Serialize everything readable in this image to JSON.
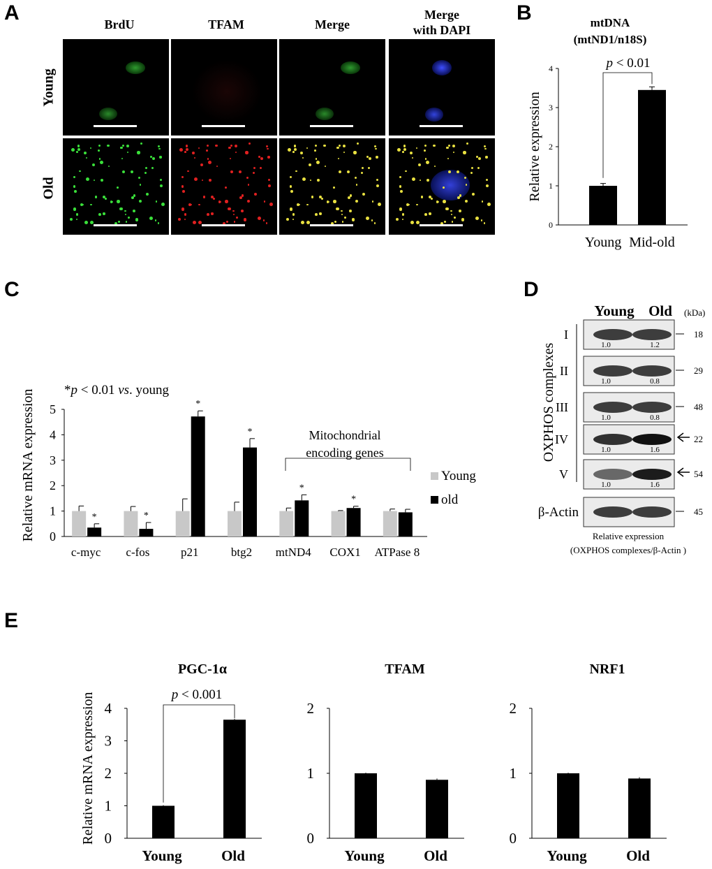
{
  "panels": {
    "a": {
      "letter": "A",
      "columns": [
        "BrdU",
        "TFAM",
        "Merge",
        "Merge\nwith DAPI"
      ],
      "rows": [
        "Young",
        "Old"
      ]
    },
    "b": {
      "letter": "B"
    },
    "c": {
      "letter": "C"
    },
    "d": {
      "letter": "D",
      "lanes": [
        "Young",
        "Old"
      ],
      "kda_label": "(kDa)",
      "group_label": "OXPHOS complexes",
      "blots": [
        {
          "label": "I",
          "values": [
            "1.0",
            "1.2"
          ],
          "kda": "18",
          "arrow": false
        },
        {
          "label": "II",
          "values": [
            "1.0",
            "0.8"
          ],
          "kda": "29",
          "arrow": false
        },
        {
          "label": "III",
          "values": [
            "1.0",
            "0.8"
          ],
          "kda": "48",
          "arrow": false
        },
        {
          "label": "IV",
          "values": [
            "1.0",
            "1.6"
          ],
          "kda": "22",
          "arrow": true
        },
        {
          "label": "V",
          "values": [
            "1.0",
            "1.6"
          ],
          "kda": "54",
          "arrow": true
        },
        {
          "label": "β-Actin",
          "values": [
            "",
            ""
          ],
          "kda": "45",
          "arrow": false
        }
      ],
      "caption_line1": "Relative expression",
      "caption_line2": "(OXPHOS complexes/β-Actin )"
    },
    "e": {
      "letter": "E"
    }
  },
  "chart_data": [
    {
      "id": "B",
      "type": "bar",
      "title_line1": "mtDNA",
      "title_line2": "(mtND1/n18S)",
      "categories": [
        "Young",
        "Mid-old"
      ],
      "values": [
        1.0,
        3.45
      ],
      "errors": [
        0.06,
        0.08
      ],
      "ylabel": "Relative expression",
      "ylim": [
        0,
        4
      ],
      "yticks": [
        0,
        1,
        2,
        3,
        4
      ],
      "annotation": {
        "prefix": "p",
        "text": " < 0.01"
      },
      "bar_color": "#000000"
    },
    {
      "id": "C",
      "type": "bar",
      "categories": [
        "c-myc",
        "c-fos",
        "p21",
        "btg2",
        "mtND4",
        "COX1",
        "ATPase 8"
      ],
      "series": [
        {
          "name": "Young",
          "color": "#c8c8c8",
          "values": [
            1.0,
            1.0,
            1.0,
            1.0,
            1.0,
            1.0,
            1.0
          ],
          "errors": [
            0.2,
            0.18,
            0.48,
            0.35,
            0.12,
            0.02,
            0.08
          ]
        },
        {
          "name": "old",
          "color": "#000000",
          "values": [
            0.35,
            0.3,
            4.72,
            3.5,
            1.42,
            1.12,
            0.95
          ],
          "errors": [
            0.15,
            0.25,
            0.22,
            0.35,
            0.22,
            0.07,
            0.12
          ],
          "star": [
            true,
            true,
            true,
            true,
            true,
            true,
            false
          ]
        }
      ],
      "ylabel": "Relative mRNA expression",
      "ylim": [
        0,
        5
      ],
      "yticks": [
        0,
        1,
        2,
        3,
        4,
        5
      ],
      "note": {
        "star": "*",
        "p": "p",
        "lt": " < 0.01 ",
        "vs": "vs",
        "rest": ". young"
      },
      "bracket_label_line1": "Mitochondrial",
      "bracket_label_line2": "encoding genes"
    },
    {
      "id": "E1",
      "type": "bar",
      "title": "PGC-1α",
      "categories": [
        "Young",
        "Old"
      ],
      "values": [
        1.0,
        3.65
      ],
      "errors": [
        0.02,
        0.03
      ],
      "ylabel": "Relative mRNA expression",
      "ylim": [
        0,
        4
      ],
      "yticks": [
        0,
        1,
        2,
        3,
        4
      ],
      "annotation": {
        "prefix": "p",
        "text": " < 0.001"
      }
    },
    {
      "id": "E2",
      "type": "bar",
      "title": "TFAM",
      "categories": [
        "Young",
        "Old"
      ],
      "values": [
        1.0,
        0.9
      ],
      "errors": [
        0.01,
        0.02
      ],
      "ylim": [
        0,
        2
      ],
      "yticks": [
        0,
        1,
        2
      ]
    },
    {
      "id": "E3",
      "type": "bar",
      "title": "NRF1",
      "categories": [
        "Young",
        "Old"
      ],
      "values": [
        1.0,
        0.92
      ],
      "errors": [
        0.01,
        0.02
      ],
      "ylim": [
        0,
        2
      ],
      "yticks": [
        0,
        1,
        2
      ]
    }
  ]
}
